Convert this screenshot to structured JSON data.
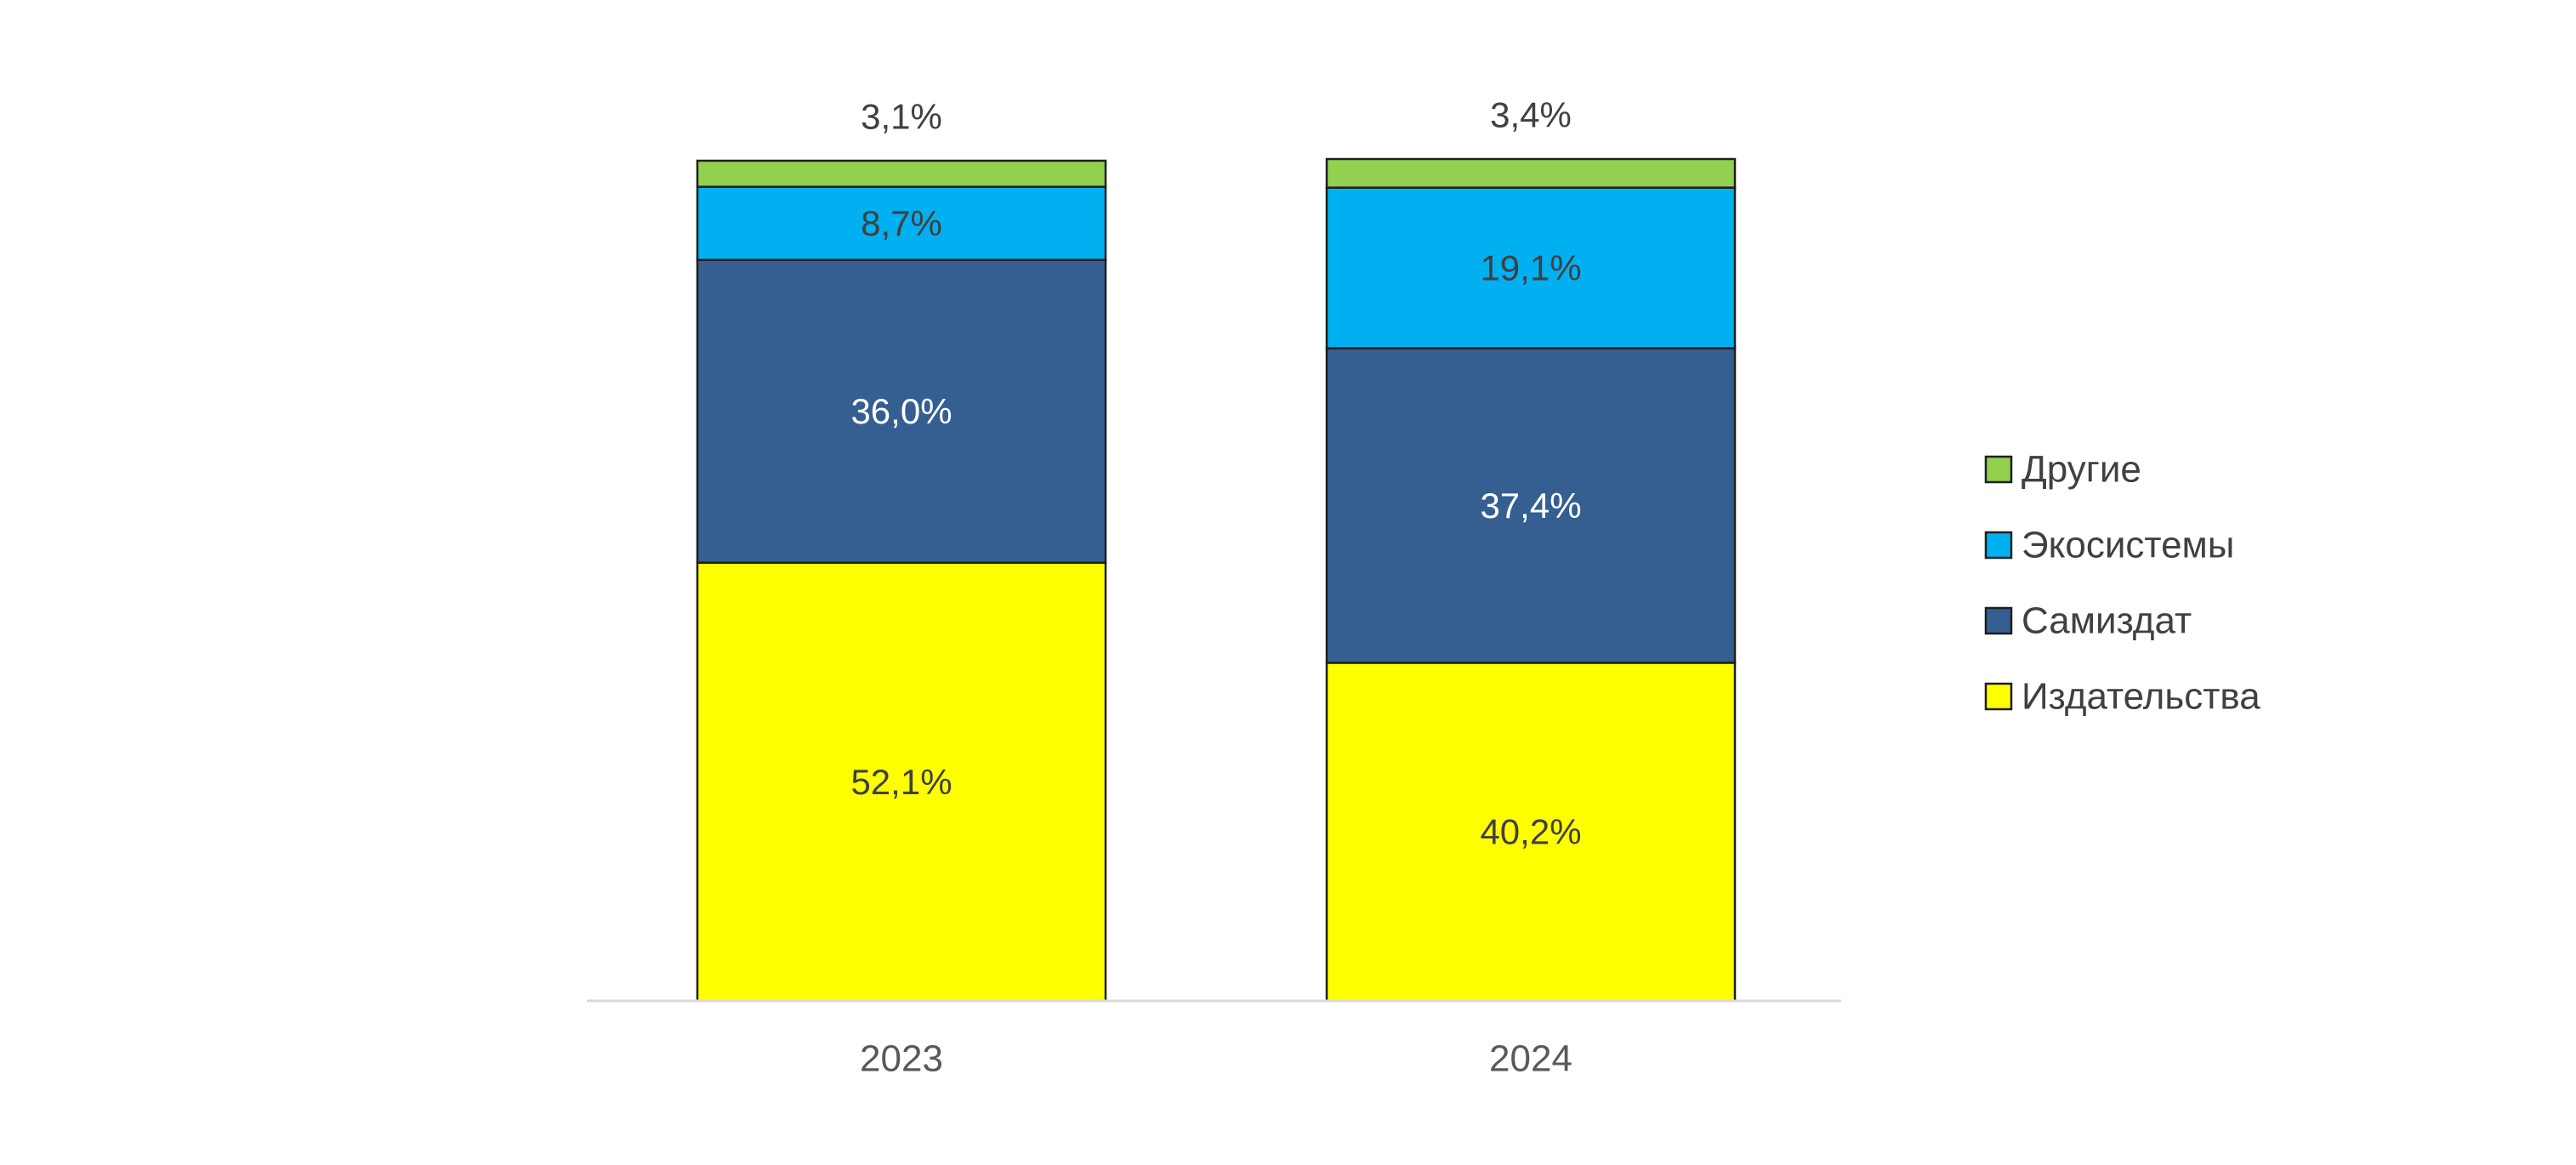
{
  "chart_data": {
    "type": "bar",
    "stacked": true,
    "categories": [
      "2023",
      "2024"
    ],
    "series": [
      {
        "name": "Издательства",
        "values": [
          52.1,
          40.2
        ],
        "labels": [
          "52,1%",
          "40,2%"
        ],
        "color": "#FFFF00",
        "label_color": "#404040"
      },
      {
        "name": "Самиздат",
        "values": [
          36.0,
          37.4
        ],
        "labels": [
          "36,0%",
          "37,4%"
        ],
        "color": "#355F91",
        "label_color": "#FFFFFF"
      },
      {
        "name": "Экосистемы",
        "values": [
          8.7,
          19.1
        ],
        "labels": [
          "8,7%",
          "19,1%"
        ],
        "color": "#00B0F0",
        "label_color": "#404040"
      },
      {
        "name": "Другие",
        "values": [
          3.1,
          3.4
        ],
        "labels": [
          "3,1%",
          "3,4%"
        ],
        "color": "#92D050",
        "label_color": "#404040",
        "label_position": "above"
      }
    ],
    "ylim": [
      0,
      100
    ],
    "title": "",
    "xlabel": "",
    "ylabel": "",
    "grid": false,
    "legend_position": "right",
    "legend_order": [
      "Другие",
      "Экосистемы",
      "Самиздат",
      "Издательства"
    ]
  }
}
